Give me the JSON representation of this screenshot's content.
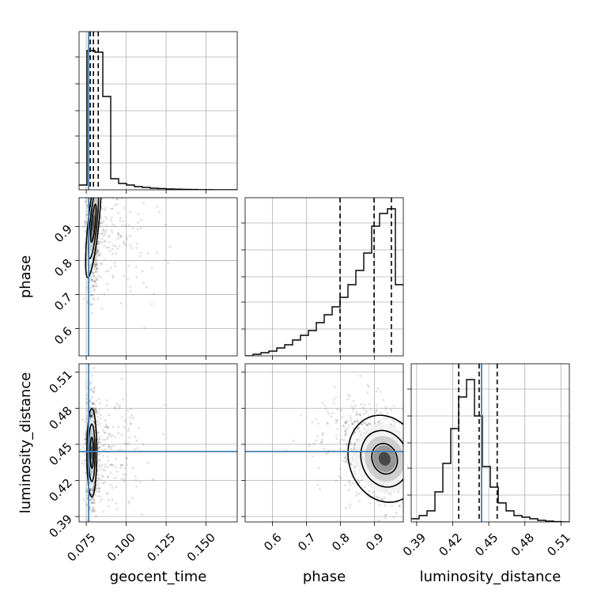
{
  "chart_data": {
    "type": "corner",
    "parameters": [
      {
        "key": "geocent_time",
        "label": "geocent_time",
        "range": [
          0.0705,
          0.1695
        ],
        "ticks": [
          "0.075",
          "0.100",
          "0.125",
          "0.150"
        ],
        "tick_values": [
          0.075,
          0.1,
          0.125,
          0.15
        ],
        "truth": 0.0765,
        "quantiles": [
          0.0775,
          0.0795,
          0.0825
        ]
      },
      {
        "key": "phase",
        "label": "phase",
        "range": [
          0.52,
          0.985
        ],
        "ticks": [
          "0.6",
          "0.7",
          "0.8",
          "0.9"
        ],
        "tick_values": [
          0.6,
          0.7,
          0.8,
          0.9
        ],
        "truth": null,
        "quantiles": [
          0.799,
          0.899,
          0.95
        ]
      },
      {
        "key": "luminosity_distance",
        "label": "luminosity_distance",
        "range": [
          0.3855,
          0.517
        ],
        "ticks": [
          "0.39",
          "0.42",
          "0.45",
          "0.48",
          "0.51"
        ],
        "tick_values": [
          0.39,
          0.42,
          0.45,
          0.48,
          0.51
        ],
        "truth": 0.444,
        "quantiles": [
          0.425,
          0.442,
          0.457
        ]
      }
    ],
    "histograms": {
      "geocent_time": {
        "edges_start": 0.0705,
        "bin_width": 0.00495,
        "counts": [
          0.03,
          0.88,
          0.87,
          0.59,
          0.07,
          0.04,
          0.03,
          0.02,
          0.015,
          0.01,
          0.008,
          0.005,
          0.004,
          0.003,
          0.002,
          0.001,
          0.001,
          0.0005,
          0.0,
          0.0
        ]
      },
      "phase": {
        "edges_start": 0.52,
        "bin_width": 0.02325,
        "counts": [
          0.0,
          0.01,
          0.02,
          0.03,
          0.05,
          0.07,
          0.1,
          0.13,
          0.16,
          0.21,
          0.26,
          0.31,
          0.37,
          0.45,
          0.54,
          0.65,
          0.82,
          0.9,
          0.93,
          0.45
        ]
      },
      "luminosity_distance": {
        "edges_start": 0.3855,
        "bin_width": 0.006575,
        "counts": [
          0.02,
          0.04,
          0.07,
          0.19,
          0.37,
          0.59,
          0.79,
          0.9,
          0.67,
          0.35,
          0.22,
          0.12,
          0.07,
          0.04,
          0.03,
          0.02,
          0.01,
          0.005,
          0.002,
          0.0
        ]
      }
    },
    "pairs": [
      {
        "x": "geocent_time",
        "y": "phase",
        "mode": [
          0.0795,
          0.91
        ],
        "sd": [
          0.0025,
          0.07
        ],
        "corr": 0.15
      },
      {
        "x": "geocent_time",
        "y": "luminosity_distance",
        "mode": [
          0.0785,
          0.443
        ],
        "sd": [
          0.0023,
          0.016
        ],
        "corr": 0.0
      },
      {
        "x": "phase",
        "y": "luminosity_distance",
        "mode": [
          0.93,
          0.438
        ],
        "sd": [
          0.05,
          0.016
        ],
        "corr": -0.45
      }
    ]
  }
}
